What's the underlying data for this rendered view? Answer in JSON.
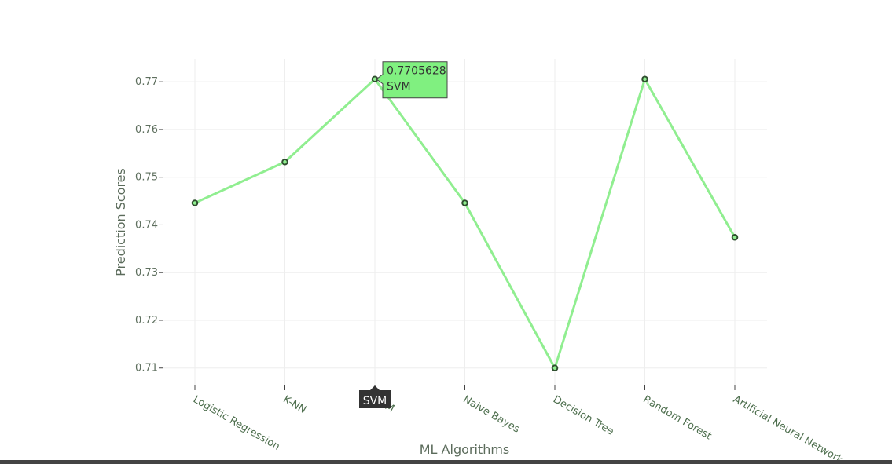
{
  "chart_data": {
    "type": "line",
    "title": "",
    "xlabel": "ML Algorithms",
    "ylabel": "Prediction Scores",
    "categories": [
      "Logistic Regression",
      "K-NN",
      "SVM",
      "Naive Bayes",
      "Decision Tree",
      "Random Forest",
      "Artificial Neural Network"
    ],
    "series": [
      {
        "values": [
          0.7446,
          0.7532,
          0.7705628,
          0.7446,
          0.71,
          0.7705628,
          0.7374
        ]
      }
    ],
    "yticks": [
      "0.71",
      "0.72",
      "0.73",
      "0.74",
      "0.75",
      "0.76",
      "0.77"
    ],
    "ylim": [
      0.7065,
      0.7748
    ],
    "grid": true,
    "line_color": "#90ee90",
    "marker_edge_color": "#2f4f2f",
    "hover": {
      "category": "SVM",
      "value_text": "0.7705628",
      "label_text": "SVM",
      "axis_label": "SVM",
      "fill": "#80f080",
      "axis_fill": "#333333"
    }
  }
}
